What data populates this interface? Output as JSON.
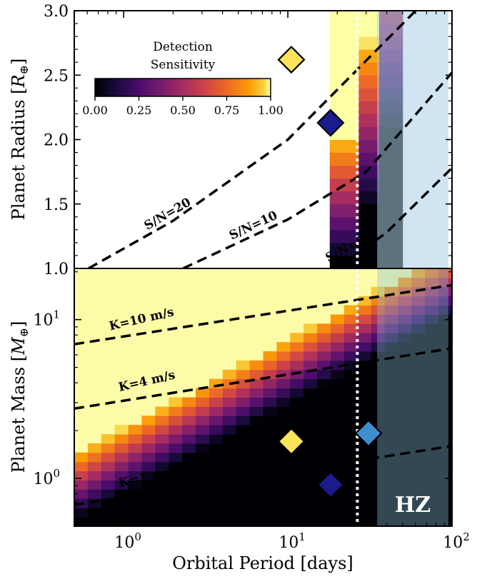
{
  "chart_data": [
    {
      "type": "heatmap",
      "panel": "top",
      "ylabel": "Planet Radius [R⊕]",
      "ylabel_main": "Planet Radius [",
      "ylabel_symbol": "R",
      "ylabel_sub": "⊕",
      "ylabel_close": "]",
      "x_scale": "log",
      "xlim": [
        0.5,
        100
      ],
      "ylim": [
        1.0,
        3.0
      ],
      "y_ticks": [
        "1.0",
        "1.5",
        "2.0",
        "2.5",
        "3.0"
      ],
      "y_tick_values": [
        1.0,
        1.5,
        2.0,
        2.5,
        3.0
      ],
      "colorbar": {
        "title_line1": "Detection",
        "title_line2": "Sensitivity",
        "ticks": [
          "0.00",
          "0.25",
          "0.50",
          "0.75",
          "1.00"
        ],
        "range": [
          0,
          1
        ]
      },
      "sensitivity_region": {
        "period_min": 18,
        "period_max": 50
      },
      "curves": [
        {
          "label": "S/N=20",
          "points": [
            [
              0.61,
              1.0
            ],
            [
              2,
              1.37
            ],
            [
              10,
              2.0
            ],
            [
              60,
              3.0
            ]
          ]
        },
        {
          "label": "S/N=10",
          "points": [
            [
              2.3,
              1.0
            ],
            [
              10,
              1.38
            ],
            [
              30,
              1.75
            ],
            [
              100,
              2.52
            ]
          ]
        },
        {
          "label": "S/N=5",
          "points": [
            [
              20,
              1.0
            ],
            [
              40,
              1.28
            ],
            [
              100,
              1.78
            ]
          ]
        }
      ],
      "planets": [
        {
          "period": 10.5,
          "value": 2.62,
          "color": "#fbe35a"
        },
        {
          "period": 18.2,
          "value": 2.13,
          "color": "#1b1b8e"
        }
      ]
    },
    {
      "type": "heatmap",
      "panel": "bottom",
      "xlabel": "Orbital Period [days]",
      "ylabel": "Planet Mass [M⊕]",
      "ylabel_main": "Planet Mass [",
      "ylabel_symbol": "M",
      "ylabel_sub": "⊕",
      "ylabel_close": "]",
      "x_scale": "log",
      "y_scale": "log",
      "xlim": [
        0.5,
        100
      ],
      "ylim": [
        0.5,
        21
      ],
      "x_ticks": [
        {
          "base": "10",
          "exp": "0",
          "value": 1
        },
        {
          "base": "10",
          "exp": "1",
          "value": 10
        },
        {
          "base": "10",
          "exp": "2",
          "value": 100
        }
      ],
      "y_ticks": [
        {
          "base": "10",
          "exp": "0",
          "value": 1
        },
        {
          "base": "10",
          "exp": "1",
          "value": 10
        }
      ],
      "curves": [
        {
          "label": "K=10 m/s",
          "points": [
            [
              0.5,
              7.0
            ],
            [
              100,
              16.5
            ]
          ]
        },
        {
          "label": "K=4 m/s",
          "points": [
            [
              0.5,
              2.75
            ],
            [
              100,
              6.6
            ]
          ]
        },
        {
          "label": "K=1 m/s",
          "points": [
            [
              0.5,
              0.68
            ],
            [
              100,
              1.6
            ]
          ]
        }
      ],
      "planets": [
        {
          "period": 10.5,
          "value": 1.68,
          "color": "#fbe35a"
        },
        {
          "period": 18.2,
          "value": 1.16,
          "color": "#1b1b8e"
        },
        {
          "period": 31.0,
          "value": 1.8,
          "color": "#3f8fd0"
        }
      ]
    }
  ],
  "reference_line": {
    "period": 26.5
  },
  "hz": {
    "label": "HZ",
    "period_min": 35,
    "period_max": 95
  }
}
